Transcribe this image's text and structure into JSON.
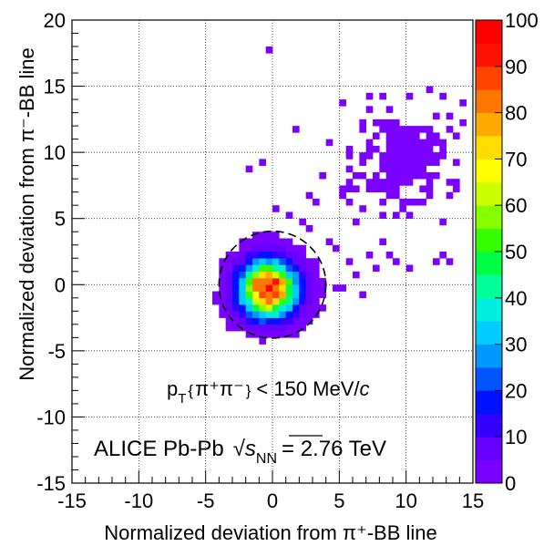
{
  "chart_data": {
    "type": "heatmap",
    "title": "",
    "xlabel": "Normalized deviation from π⁺-BB line",
    "ylabel": "Normalized deviation from π⁻-BB line",
    "xlim": [
      -15,
      15
    ],
    "ylim": [
      -15,
      15
    ],
    "x_ticks": [
      -15,
      -10,
      -5,
      0,
      5,
      10,
      15
    ],
    "y_ticks": [
      -15,
      -10,
      -5,
      0,
      5,
      10,
      15,
      20
    ],
    "x_tick_labels": [
      "-15",
      "-10",
      "-5",
      "0",
      "5",
      "10",
      "15"
    ],
    "y_tick_labels": [
      "-15",
      "-10",
      "-5",
      "0",
      "5",
      "10",
      "15",
      "20"
    ],
    "grid": true,
    "bin_width": 0.5,
    "colorscale": {
      "min": 0,
      "max": 100,
      "step": 5,
      "tick_values": [
        0,
        10,
        20,
        30,
        40,
        50,
        60,
        70,
        80,
        90,
        100
      ],
      "tick_labels": [
        "0",
        "10",
        "20",
        "30",
        "40",
        "50",
        "60",
        "70",
        "80",
        "90",
        "100"
      ],
      "colors": [
        "#7a00ff",
        "#6600ff",
        "#3300ff",
        "#0011ff",
        "#0055ff",
        "#0099ff",
        "#00ccff",
        "#00eedd",
        "#00ff99",
        "#00ff44",
        "#33ff00",
        "#88ff00",
        "#ccff00",
        "#ffff00",
        "#ffdd00",
        "#ffaa00",
        "#ff7700",
        "#ff4400",
        "#ff1100",
        "#ff0000"
      ]
    },
    "core_cluster": {
      "center": [
        0,
        0
      ],
      "sigma": 1.35,
      "peak": 100,
      "extent": 4.2
    },
    "secondary_cluster": {
      "center": [
        9.5,
        9.5
      ],
      "spread": [
        1.8,
        1.8
      ],
      "points": 220,
      "max_count": 4
    },
    "stray_points": [
      [
        -0.3,
        17.5
      ],
      [
        1.5,
        11.5
      ],
      [
        -2,
        8.5
      ],
      [
        -1,
        9
      ],
      [
        0,
        5.5
      ],
      [
        1,
        5
      ],
      [
        2,
        4.5
      ],
      [
        2.5,
        4
      ],
      [
        3,
        6
      ],
      [
        4,
        3
      ],
      [
        4.5,
        2.5
      ],
      [
        5.5,
        1.5
      ],
      [
        6,
        0.5
      ],
      [
        6.5,
        -1
      ],
      [
        5,
        -0.5
      ],
      [
        4.5,
        -0.5
      ],
      [
        3.5,
        -2
      ],
      [
        7,
        2
      ],
      [
        7.5,
        1
      ],
      [
        8,
        3
      ],
      [
        8.5,
        2
      ],
      [
        9,
        1.5
      ],
      [
        10,
        1
      ],
      [
        12,
        1.5
      ],
      [
        13,
        1.5
      ],
      [
        12.5,
        2
      ],
      [
        6.5,
        5.5
      ],
      [
        6,
        4.5
      ],
      [
        7,
        7.5
      ],
      [
        5,
        7
      ],
      [
        5.5,
        6
      ],
      [
        4,
        10.5
      ],
      [
        3.5,
        8
      ],
      [
        2.5,
        6.5
      ],
      [
        11.5,
        14.5
      ],
      [
        12.5,
        14
      ],
      [
        14,
        13.5
      ],
      [
        14,
        12
      ],
      [
        13.5,
        11
      ]
    ],
    "acceptance_circle": {
      "center": [
        0,
        0
      ],
      "radius": 4
    },
    "annotations": {
      "selection": {
        "p": "p",
        "sub": "T",
        "open": "{",
        "particles": "π⁺π⁻",
        "close": "}",
        "cut": "< 150 MeV/",
        "unit_italic": "c"
      },
      "experiment": {
        "label": "ALICE Pb-Pb",
        "sqrt_symbol": "√",
        "s": "s",
        "s_sub": "NN",
        "energy": "= 2.76 TeV"
      }
    }
  }
}
